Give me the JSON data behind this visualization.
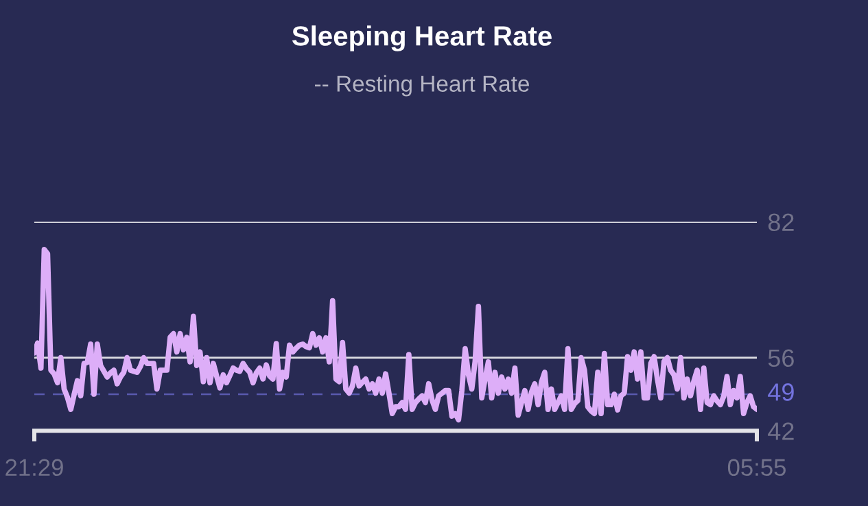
{
  "chart_data": {
    "type": "line",
    "title": "Sleeping Heart Rate",
    "subtitle": "-- Resting Heart Rate",
    "categories": [
      "21:29",
      null,
      null,
      null,
      null,
      null,
      null,
      null,
      null,
      null,
      null,
      null,
      null,
      null,
      null,
      null,
      null,
      null,
      null,
      null,
      null,
      null,
      null,
      null,
      null,
      null,
      null,
      null,
      null,
      null,
      null,
      null,
      null,
      null,
      null,
      null,
      null,
      null,
      null,
      null,
      null,
      null,
      null,
      null,
      null,
      null,
      null,
      null,
      null,
      null,
      null,
      null,
      null,
      null,
      null,
      null,
      null,
      null,
      null,
      null,
      null,
      null,
      null,
      null,
      null,
      null,
      null,
      null,
      null,
      null,
      null,
      null,
      null,
      null,
      null,
      null,
      null,
      null,
      null,
      null,
      null,
      null,
      null,
      null,
      null,
      null,
      null,
      null,
      null,
      null,
      null,
      null,
      null,
      null,
      null,
      null,
      null,
      null,
      null,
      null,
      null,
      null,
      null,
      null,
      null,
      null,
      null,
      null,
      null,
      null,
      null,
      null,
      null,
      null,
      null,
      null,
      null,
      null,
      null,
      null,
      null,
      null,
      null,
      null,
      null,
      null,
      null,
      null,
      null,
      null,
      null,
      null,
      null,
      null,
      null,
      null,
      null,
      null,
      null,
      null,
      null,
      null,
      null,
      null,
      null,
      null,
      null,
      null,
      null,
      null,
      null,
      null,
      null,
      null,
      null,
      null,
      null,
      null,
      null,
      null,
      null,
      null,
      null,
      null,
      null,
      null,
      null,
      null,
      null,
      null,
      null,
      null,
      null,
      null,
      null,
      null,
      null,
      null,
      null,
      null,
      null,
      null,
      null,
      null,
      null,
      null,
      null,
      null,
      null,
      null,
      null,
      null,
      null,
      null,
      null,
      null,
      null,
      null,
      null,
      null,
      null,
      null,
      null,
      null,
      null,
      null,
      null,
      null,
      null,
      null,
      null,
      null,
      null,
      null,
      null,
      null,
      null,
      null,
      "05:55"
    ],
    "series": [
      {
        "color": "#ddaef8",
        "values": [
          56.9,
          58.8,
          54.0,
          76.7,
          75.9,
          53.6,
          52.9,
          51.2,
          56.0,
          50.0,
          48.4,
          46.1,
          48.9,
          51.6,
          48.7,
          54.9,
          55.1,
          58.6,
          49.0,
          58.6,
          54.5,
          53.4,
          52.3,
          53.1,
          53.6,
          51.0,
          52.3,
          53.2,
          56.0,
          53.6,
          53.4,
          53.2,
          54.3,
          56.0,
          54.9,
          54.9,
          54.9,
          50.0,
          53.6,
          53.6,
          53.6,
          59.9,
          60.6,
          57.1,
          60.6,
          57.5,
          59.9,
          55.2,
          63.9,
          54.5,
          57.1,
          51.4,
          56.0,
          51.2,
          54.9,
          52.5,
          50.2,
          52.7,
          51.2,
          52.6,
          54.0,
          53.6,
          53.4,
          54.9,
          53.9,
          53.2,
          51.2,
          53.1,
          54.0,
          51.9,
          54.6,
          52.5,
          51.9,
          58.7,
          50.0,
          53.2,
          52.3,
          58.4,
          57.1,
          57.8,
          58.4,
          58.6,
          58.1,
          57.9,
          60.6,
          58.4,
          59.8,
          57.1,
          59.8,
          55.2,
          66.9,
          51.9,
          51.4,
          58.9,
          50.0,
          49.2,
          50.6,
          54.0,
          50.6,
          51.3,
          51.9,
          50.0,
          51.0,
          49.2,
          51.9,
          49.2,
          52.9,
          49.2,
          45.3,
          46.6,
          46.6,
          47.4,
          46.1,
          56.6,
          46.1,
          47.4,
          48.1,
          48.7,
          47.4,
          51.0,
          47.9,
          46.1,
          48.7,
          49.2,
          49.7,
          49.7,
          44.8,
          45.3,
          44.1,
          49.7,
          57.7,
          52.7,
          50.0,
          55.3,
          65.8,
          48.3,
          51.9,
          55.2,
          48.3,
          53.2,
          49.2,
          52.3,
          50.0,
          51.9,
          49.2,
          54.0,
          45.0,
          47.4,
          49.7,
          46.1,
          49.4,
          51.0,
          47.0,
          51.3,
          53.2,
          46.1,
          50.0,
          46.1,
          47.4,
          48.7,
          46.1,
          57.7,
          46.1,
          47.2,
          47.8,
          56.0,
          53.6,
          46.6,
          45.8,
          45.3,
          53.2,
          45.3,
          56.8,
          47.0,
          47.0,
          49.0,
          46.0,
          48.7,
          49.2,
          56.2,
          53.6,
          57.1,
          51.9,
          57.1,
          48.3,
          48.3,
          54.9,
          56.2,
          51.9,
          48.3,
          55.3,
          56.0,
          53.6,
          52.7,
          50.0,
          56.0,
          48.3,
          51.9,
          48.7,
          51.5,
          53.6,
          46.1,
          54.0,
          47.4,
          47.0,
          48.7,
          47.7,
          47.0,
          48.6,
          52.4,
          47.0,
          49.7,
          48.3,
          52.4,
          45.3,
          47.4,
          48.7,
          46.6,
          46.1
        ]
      }
    ],
    "ylim": [
      42,
      82
    ],
    "yticks": [
      42,
      56,
      82
    ],
    "grid": "y",
    "line_style": "solid",
    "ref_lines": [
      {
        "axis": "y",
        "value": 49,
        "label": "49",
        "color": "#7373de",
        "line_style": "dashed"
      }
    ]
  }
}
